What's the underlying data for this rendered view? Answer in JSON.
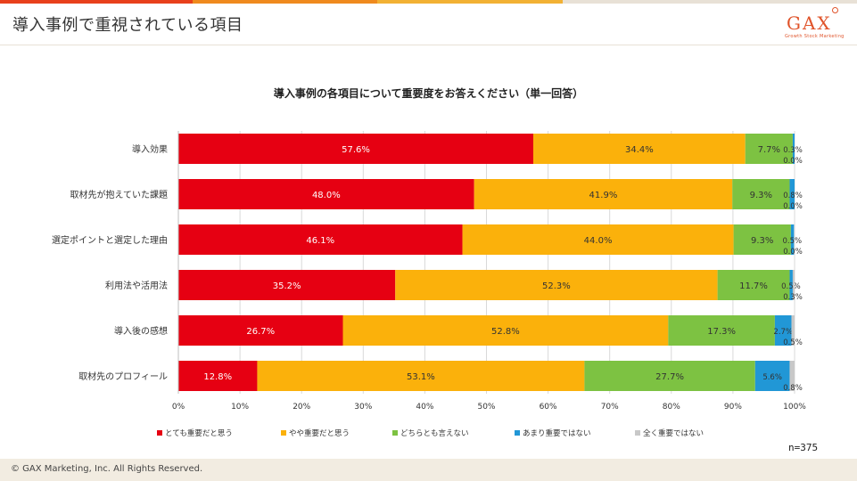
{
  "header": {
    "title": "導入事例で重視されている項目"
  },
  "logo": {
    "text": "GAX",
    "subtitle": "Growth Stock Marketing"
  },
  "colors": {
    "topbar": [
      "#e8401c",
      "#ef8a1e",
      "#f2b134",
      "#e8e1d6"
    ],
    "series": [
      "#e60012",
      "#fbb10b",
      "#7dc242",
      "#2197d6",
      "#c8c8c8"
    ]
  },
  "n_label": "n=375",
  "footer": {
    "copyright": "© GAX Marketing, Inc. All Rights Reserved."
  },
  "chart_data": {
    "type": "bar",
    "orientation": "horizontal",
    "stacked": "100%",
    "title": "導入事例の各項目について重要度をお答えください（単一回答）",
    "categories": [
      "導入効果",
      "取材先が抱えていた課題",
      "選定ポイントと選定した理由",
      "利用法や活用法",
      "導入後の感想",
      "取材先のプロフィール"
    ],
    "series": [
      {
        "name": "とても重要だと思う",
        "values": [
          57.6,
          48.0,
          46.1,
          35.2,
          26.7,
          12.8
        ]
      },
      {
        "name": "やや重要だと思う",
        "values": [
          34.4,
          41.9,
          44.0,
          52.3,
          52.8,
          53.1
        ]
      },
      {
        "name": "どちらとも言えない",
        "values": [
          7.7,
          9.3,
          9.3,
          11.7,
          17.3,
          27.7
        ]
      },
      {
        "name": "あまり重要ではない",
        "values": [
          0.3,
          0.8,
          0.5,
          0.5,
          2.7,
          5.6
        ]
      },
      {
        "name": "全く重要ではない",
        "values": [
          0.0,
          0.0,
          0.0,
          0.3,
          0.5,
          0.8
        ]
      }
    ],
    "xlim": [
      0,
      100
    ],
    "xticks": [
      "0%",
      "10%",
      "20%",
      "30%",
      "40%",
      "50%",
      "60%",
      "70%",
      "80%",
      "90%",
      "100%"
    ],
    "grid": true,
    "legend_position": "bottom",
    "unit": "%"
  }
}
